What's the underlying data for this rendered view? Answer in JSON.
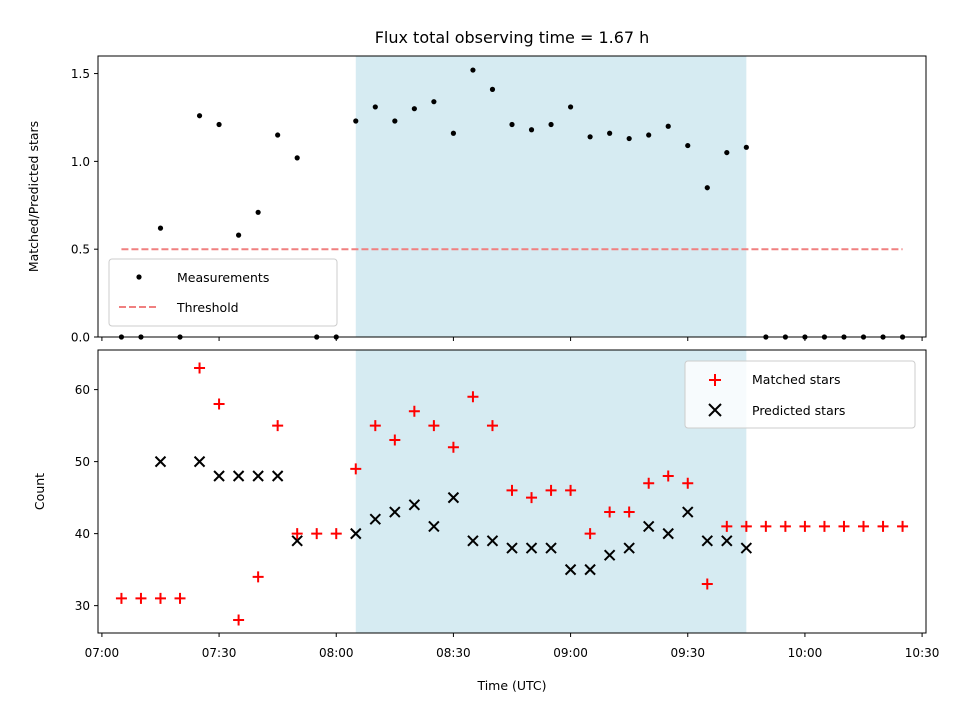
{
  "chart_data": [
    {
      "type": "scatter",
      "title": "Flux total observing time = 1.67 h",
      "xlabel": "",
      "ylabel": "Matched/Predicted stars",
      "xlim": [
        "06:59",
        "10:31"
      ],
      "ylim": [
        0,
        1.6
      ],
      "yticks": [
        0.0,
        0.5,
        1.0,
        1.5
      ],
      "ytick_labels": [
        "0.0",
        "0.5",
        "1.0",
        "1.5"
      ],
      "xticks": [
        "07:00",
        "07:30",
        "08:00",
        "08:30",
        "09:00",
        "09:30",
        "10:00",
        "10:30"
      ],
      "show_xtick_labels": false,
      "grid": false,
      "shaded_interval": {
        "start": "08:05",
        "end": "09:45",
        "color": "#add8e6"
      },
      "legend_location": "lower-left",
      "series": [
        {
          "name": "Measurements",
          "marker": "dot",
          "color": "#000000",
          "points": [
            [
              "07:05",
              0.0
            ],
            [
              "07:10",
              0.0
            ],
            [
              "07:15",
              0.62
            ],
            [
              "07:20",
              0.0
            ],
            [
              "07:25",
              1.26
            ],
            [
              "07:30",
              1.21
            ],
            [
              "07:35",
              0.58
            ],
            [
              "07:40",
              0.71
            ],
            [
              "07:45",
              1.15
            ],
            [
              "07:50",
              1.02
            ],
            [
              "07:55",
              0.0
            ],
            [
              "08:00",
              0.0
            ],
            [
              "08:05",
              1.23
            ],
            [
              "08:10",
              1.31
            ],
            [
              "08:15",
              1.23
            ],
            [
              "08:20",
              1.3
            ],
            [
              "08:25",
              1.34
            ],
            [
              "08:30",
              1.16
            ],
            [
              "08:35",
              1.52
            ],
            [
              "08:40",
              1.41
            ],
            [
              "08:45",
              1.21
            ],
            [
              "08:50",
              1.18
            ],
            [
              "08:55",
              1.21
            ],
            [
              "09:00",
              1.31
            ],
            [
              "09:05",
              1.14
            ],
            [
              "09:10",
              1.16
            ],
            [
              "09:15",
              1.13
            ],
            [
              "09:20",
              1.15
            ],
            [
              "09:25",
              1.2
            ],
            [
              "09:30",
              1.09
            ],
            [
              "09:35",
              0.85
            ],
            [
              "09:40",
              1.05
            ],
            [
              "09:45",
              1.08
            ],
            [
              "09:50",
              0.0
            ],
            [
              "09:55",
              0.0
            ],
            [
              "10:00",
              0.0
            ],
            [
              "10:05",
              0.0
            ],
            [
              "10:10",
              0.0
            ],
            [
              "10:15",
              0.0
            ],
            [
              "10:20",
              0.0
            ],
            [
              "10:25",
              0.0
            ]
          ]
        },
        {
          "name": "Threshold",
          "marker": "dashed-line",
          "color": "#f08080",
          "points": [
            [
              "07:05",
              0.5
            ],
            [
              "10:25",
              0.5
            ]
          ]
        }
      ]
    },
    {
      "type": "scatter",
      "title": "",
      "xlabel": "Time (UTC)",
      "ylabel": "Count",
      "xlim": [
        "06:59",
        "10:31"
      ],
      "ylim": [
        26.2,
        65.5
      ],
      "yticks": [
        30,
        40,
        50,
        60
      ],
      "ytick_labels": [
        "30",
        "40",
        "50",
        "60"
      ],
      "xticks": [
        "07:00",
        "07:30",
        "08:00",
        "08:30",
        "09:00",
        "09:30",
        "10:00",
        "10:30"
      ],
      "xtick_labels": [
        "07:00",
        "07:30",
        "08:00",
        "08:30",
        "09:00",
        "09:30",
        "10:00",
        "10:30"
      ],
      "grid": false,
      "shaded_interval": {
        "start": "08:05",
        "end": "09:45",
        "color": "#add8e6"
      },
      "legend_location": "top-right",
      "series": [
        {
          "name": "Matched stars",
          "marker": "plus",
          "color": "#ff0000",
          "points": [
            [
              "07:05",
              31
            ],
            [
              "07:10",
              31
            ],
            [
              "07:15",
              31
            ],
            [
              "07:20",
              31
            ],
            [
              "07:25",
              63
            ],
            [
              "07:30",
              58
            ],
            [
              "07:35",
              28
            ],
            [
              "07:40",
              34
            ],
            [
              "07:45",
              55
            ],
            [
              "07:50",
              40
            ],
            [
              "07:55",
              40
            ],
            [
              "08:00",
              40
            ],
            [
              "08:05",
              49
            ],
            [
              "08:10",
              55
            ],
            [
              "08:15",
              53
            ],
            [
              "08:20",
              57
            ],
            [
              "08:25",
              55
            ],
            [
              "08:30",
              52
            ],
            [
              "08:35",
              59
            ],
            [
              "08:40",
              55
            ],
            [
              "08:45",
              46
            ],
            [
              "08:50",
              45
            ],
            [
              "08:55",
              46
            ],
            [
              "09:00",
              46
            ],
            [
              "09:05",
              40
            ],
            [
              "09:10",
              43
            ],
            [
              "09:15",
              43
            ],
            [
              "09:20",
              47
            ],
            [
              "09:25",
              48
            ],
            [
              "09:30",
              47
            ],
            [
              "09:35",
              33
            ],
            [
              "09:40",
              41
            ],
            [
              "09:45",
              41
            ],
            [
              "09:50",
              41
            ],
            [
              "09:55",
              41
            ],
            [
              "10:00",
              41
            ],
            [
              "10:05",
              41
            ],
            [
              "10:10",
              41
            ],
            [
              "10:15",
              41
            ],
            [
              "10:20",
              41
            ],
            [
              "10:25",
              41
            ]
          ]
        },
        {
          "name": "Predicted stars",
          "marker": "x",
          "color": "#000000",
          "points": [
            [
              "07:15",
              50
            ],
            [
              "07:25",
              50
            ],
            [
              "07:30",
              48
            ],
            [
              "07:35",
              48
            ],
            [
              "07:40",
              48
            ],
            [
              "07:45",
              48
            ],
            [
              "07:50",
              39
            ],
            [
              "08:05",
              40
            ],
            [
              "08:10",
              42
            ],
            [
              "08:15",
              43
            ],
            [
              "08:20",
              44
            ],
            [
              "08:25",
              41
            ],
            [
              "08:30",
              45
            ],
            [
              "08:35",
              39
            ],
            [
              "08:40",
              39
            ],
            [
              "08:45",
              38
            ],
            [
              "08:50",
              38
            ],
            [
              "08:55",
              38
            ],
            [
              "09:00",
              35
            ],
            [
              "09:05",
              35
            ],
            [
              "09:10",
              37
            ],
            [
              "09:15",
              38
            ],
            [
              "09:20",
              41
            ],
            [
              "09:25",
              40
            ],
            [
              "09:30",
              43
            ],
            [
              "09:35",
              39
            ],
            [
              "09:40",
              39
            ],
            [
              "09:45",
              38
            ]
          ]
        }
      ]
    }
  ]
}
